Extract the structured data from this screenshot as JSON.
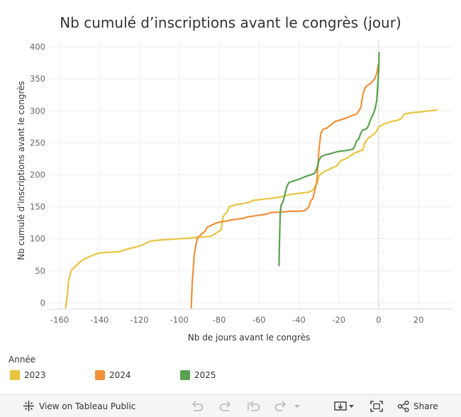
{
  "chart_data": {
    "type": "line",
    "title": "Nb cumulé d’inscriptions  avant le congrès (jour)",
    "xlabel": "Nb de jours avant le congrès",
    "ylabel": "Nb cumulé d’inscriptions avant le congrès",
    "xlim": [
      -165,
      37
    ],
    "ylim": [
      -10,
      410
    ],
    "xticks": [
      -160,
      -140,
      -120,
      -100,
      -80,
      -60,
      -40,
      -20,
      0,
      20
    ],
    "yticks": [
      0,
      50,
      100,
      150,
      200,
      250,
      300,
      350,
      400
    ],
    "grid": true,
    "reference_line_x": 0,
    "legend_title": "Année",
    "legend_position": "bottom-left",
    "series": [
      {
        "name": "2023",
        "color": "#e8c441",
        "points": [
          [
            -157,
            -8
          ],
          [
            -156,
            15
          ],
          [
            -155.5,
            35
          ],
          [
            -154,
            52
          ],
          [
            -152,
            57
          ],
          [
            -150,
            63
          ],
          [
            -148,
            68
          ],
          [
            -145,
            72
          ],
          [
            -142,
            76
          ],
          [
            -140,
            78
          ],
          [
            -135,
            79
          ],
          [
            -130,
            80
          ],
          [
            -126,
            84
          ],
          [
            -122,
            87
          ],
          [
            -118,
            91
          ],
          [
            -115,
            96
          ],
          [
            -110,
            98
          ],
          [
            -100,
            100
          ],
          [
            -95,
            101
          ],
          [
            -92,
            102
          ],
          [
            -88,
            103
          ],
          [
            -84,
            104
          ],
          [
            -82,
            108
          ],
          [
            -79,
            114
          ],
          [
            -78,
            135
          ],
          [
            -76,
            142
          ],
          [
            -75,
            150
          ],
          [
            -72,
            153
          ],
          [
            -68,
            155
          ],
          [
            -65,
            157
          ],
          [
            -63,
            160
          ],
          [
            -58,
            162
          ],
          [
            -52,
            164
          ],
          [
            -48,
            166
          ],
          [
            -45,
            169
          ],
          [
            -40,
            171
          ],
          [
            -35,
            173
          ],
          [
            -33,
            176
          ],
          [
            -31,
            186
          ],
          [
            -30,
            198
          ],
          [
            -28,
            204
          ],
          [
            -26,
            207
          ],
          [
            -24,
            210
          ],
          [
            -21,
            214
          ],
          [
            -19,
            222
          ],
          [
            -16,
            226
          ],
          [
            -14,
            230
          ],
          [
            -12,
            234
          ],
          [
            -8,
            239
          ],
          [
            -7,
            250
          ],
          [
            -5,
            258
          ],
          [
            -3,
            262
          ],
          [
            -1,
            268
          ],
          [
            0,
            275
          ],
          [
            3,
            280
          ],
          [
            6,
            283
          ],
          [
            9,
            285
          ],
          [
            11,
            287
          ],
          [
            13,
            295
          ],
          [
            16,
            297
          ],
          [
            20,
            298
          ],
          [
            25,
            300
          ],
          [
            29,
            301
          ]
        ]
      },
      {
        "name": "2024",
        "color": "#f0903a",
        "points": [
          [
            -94,
            -8
          ],
          [
            -93.5,
            30
          ],
          [
            -92.5,
            75
          ],
          [
            -91,
            101
          ],
          [
            -89,
            107
          ],
          [
            -87,
            112
          ],
          [
            -86,
            118
          ],
          [
            -84,
            121
          ],
          [
            -82,
            124
          ],
          [
            -80,
            126
          ],
          [
            -76,
            128
          ],
          [
            -73,
            130
          ],
          [
            -68,
            132
          ],
          [
            -66,
            134
          ],
          [
            -62,
            136
          ],
          [
            -57,
            138
          ],
          [
            -54,
            141
          ],
          [
            -48,
            142
          ],
          [
            -44,
            143
          ],
          [
            -40,
            143
          ],
          [
            -37,
            144
          ],
          [
            -35,
            150
          ],
          [
            -34,
            160
          ],
          [
            -33,
            163
          ],
          [
            -31,
            190
          ],
          [
            -30,
            238
          ],
          [
            -29,
            265
          ],
          [
            -28,
            271
          ],
          [
            -26,
            273
          ],
          [
            -24,
            278
          ],
          [
            -22,
            283
          ],
          [
            -20,
            285
          ],
          [
            -16,
            289
          ],
          [
            -14,
            292
          ],
          [
            -11,
            295
          ],
          [
            -9,
            305
          ],
          [
            -8,
            325
          ],
          [
            -7,
            335
          ],
          [
            -6,
            339
          ],
          [
            -4,
            343
          ],
          [
            -2,
            350
          ],
          [
            -1,
            358
          ],
          [
            0,
            375
          ]
        ]
      },
      {
        "name": "2025",
        "color": "#59a14f",
        "points": [
          [
            -50,
            58
          ],
          [
            -49.7,
            100
          ],
          [
            -49.4,
            140
          ],
          [
            -49,
            152
          ],
          [
            -48,
            158
          ],
          [
            -47,
            170
          ],
          [
            -46,
            182
          ],
          [
            -45,
            188
          ],
          [
            -43,
            190
          ],
          [
            -40,
            193
          ],
          [
            -37,
            197
          ],
          [
            -33,
            201
          ],
          [
            -32,
            203
          ],
          [
            -31,
            210
          ],
          [
            -30,
            222
          ],
          [
            -29,
            228
          ],
          [
            -27,
            231
          ],
          [
            -24,
            233
          ],
          [
            -21,
            236
          ],
          [
            -19,
            237
          ],
          [
            -16,
            238
          ],
          [
            -13,
            240
          ],
          [
            -12,
            245
          ],
          [
            -11,
            253
          ],
          [
            -10,
            256
          ],
          [
            -9,
            265
          ],
          [
            -8,
            270
          ],
          [
            -6,
            272
          ],
          [
            -5,
            278
          ],
          [
            -4,
            287
          ],
          [
            -3,
            293
          ],
          [
            -2,
            301
          ],
          [
            -1,
            315
          ],
          [
            -0.5,
            340
          ],
          [
            0,
            365
          ],
          [
            0.2,
            391
          ]
        ]
      }
    ]
  },
  "toolbar": {
    "view_label": "View on Tableau Public",
    "share_label": "Share",
    "tableau_icon": "tableau-logo-icon",
    "undo_icon": "undo-icon",
    "redo_icon": "redo-icon",
    "revert_icon": "revert-icon",
    "refresh_icon": "refresh-icon",
    "dropdown_icon": "chevron-down-icon",
    "download_icon": "download-icon",
    "fullscreen_icon": "fullscreen-icon",
    "share_icon": "share-icon"
  }
}
